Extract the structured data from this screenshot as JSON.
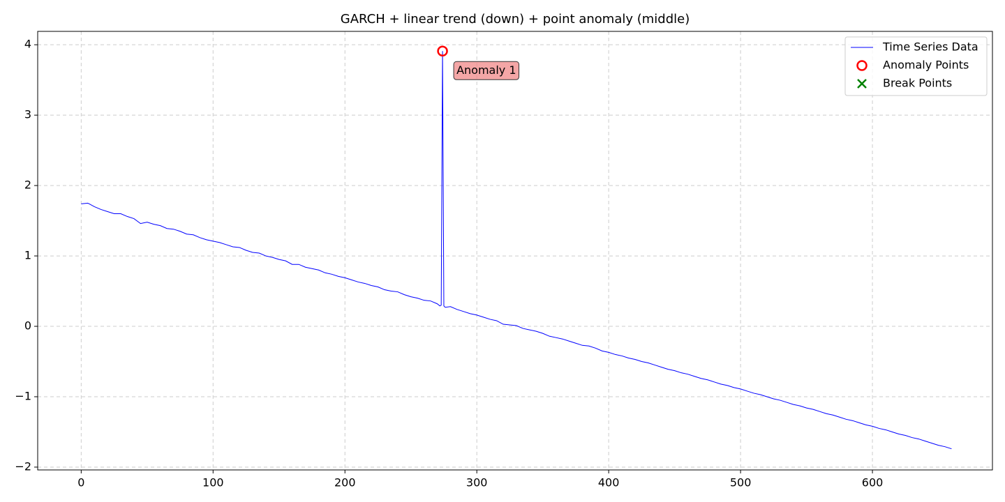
{
  "chart_data": {
    "type": "line",
    "title": "GARCH + linear trend (down) + point anomaly (middle)",
    "xlim": [
      -33,
      691
    ],
    "ylim": [
      -2.04,
      4.19
    ],
    "xticks": [
      0,
      100,
      200,
      300,
      400,
      500,
      600
    ],
    "yticks": [
      {
        "value": -2,
        "label": "−2"
      },
      {
        "value": -1,
        "label": "−1"
      },
      0,
      1,
      2,
      3,
      4
    ],
    "grid": true,
    "legend": "upper right",
    "series": [
      {
        "name": "Time Series Data",
        "color": "#0000ff",
        "marker": "line",
        "x": [
          0,
          5,
          10,
          15,
          20,
          25,
          30,
          35,
          40,
          45,
          50,
          55,
          60,
          65,
          70,
          75,
          80,
          85,
          90,
          95,
          100,
          105,
          110,
          115,
          120,
          125,
          130,
          135,
          140,
          145,
          150,
          155,
          160,
          165,
          170,
          175,
          180,
          185,
          190,
          195,
          200,
          205,
          210,
          215,
          220,
          225,
          230,
          235,
          240,
          245,
          250,
          255,
          260,
          265,
          270,
          272,
          273,
          274,
          275,
          276,
          280,
          285,
          290,
          295,
          300,
          305,
          310,
          315,
          320,
          325,
          330,
          335,
          340,
          345,
          350,
          355,
          360,
          365,
          370,
          375,
          380,
          385,
          390,
          395,
          400,
          405,
          410,
          415,
          420,
          425,
          430,
          435,
          440,
          445,
          450,
          455,
          460,
          465,
          470,
          475,
          480,
          485,
          490,
          495,
          500,
          505,
          510,
          515,
          520,
          525,
          530,
          535,
          540,
          545,
          550,
          555,
          560,
          565,
          570,
          575,
          580,
          585,
          590,
          595,
          600,
          605,
          610,
          615,
          620,
          625,
          630,
          635,
          640,
          645,
          650,
          655,
          660
        ],
        "values": [
          1.74,
          1.75,
          1.7,
          1.66,
          1.63,
          1.6,
          1.6,
          1.56,
          1.53,
          1.46,
          1.48,
          1.45,
          1.43,
          1.39,
          1.38,
          1.35,
          1.31,
          1.3,
          1.26,
          1.23,
          1.21,
          1.19,
          1.16,
          1.13,
          1.12,
          1.08,
          1.05,
          1.04,
          1.0,
          0.98,
          0.95,
          0.93,
          0.88,
          0.88,
          0.84,
          0.82,
          0.8,
          0.76,
          0.74,
          0.71,
          0.69,
          0.66,
          0.63,
          0.61,
          0.58,
          0.56,
          0.52,
          0.5,
          0.49,
          0.45,
          0.42,
          0.4,
          0.37,
          0.36,
          0.32,
          0.29,
          0.3,
          3.91,
          0.29,
          0.27,
          0.28,
          0.24,
          0.21,
          0.18,
          0.16,
          0.13,
          0.1,
          0.08,
          0.03,
          0.02,
          0.01,
          -0.03,
          -0.05,
          -0.07,
          -0.1,
          -0.14,
          -0.16,
          -0.18,
          -0.21,
          -0.24,
          -0.27,
          -0.28,
          -0.31,
          -0.35,
          -0.37,
          -0.4,
          -0.42,
          -0.45,
          -0.47,
          -0.5,
          -0.52,
          -0.55,
          -0.58,
          -0.61,
          -0.63,
          -0.66,
          -0.68,
          -0.71,
          -0.74,
          -0.76,
          -0.79,
          -0.82,
          -0.84,
          -0.87,
          -0.89,
          -0.92,
          -0.95,
          -0.97,
          -1.0,
          -1.03,
          -1.05,
          -1.08,
          -1.11,
          -1.13,
          -1.16,
          -1.18,
          -1.21,
          -1.24,
          -1.26,
          -1.29,
          -1.32,
          -1.34,
          -1.37,
          -1.4,
          -1.42,
          -1.45,
          -1.47,
          -1.5,
          -1.53,
          -1.55,
          -1.58,
          -1.6,
          -1.63,
          -1.66,
          -1.69,
          -1.71,
          -1.74
        ]
      },
      {
        "name": "Anomaly Points",
        "color": "#ff0000",
        "marker": "circle",
        "x": [
          274
        ],
        "values": [
          3.91
        ]
      },
      {
        "name": "Break Points",
        "color": "#008000",
        "marker": "x",
        "x": [],
        "values": []
      }
    ],
    "annotations": [
      {
        "text": "Anomaly 1",
        "x": 274,
        "y": 3.91
      }
    ]
  }
}
